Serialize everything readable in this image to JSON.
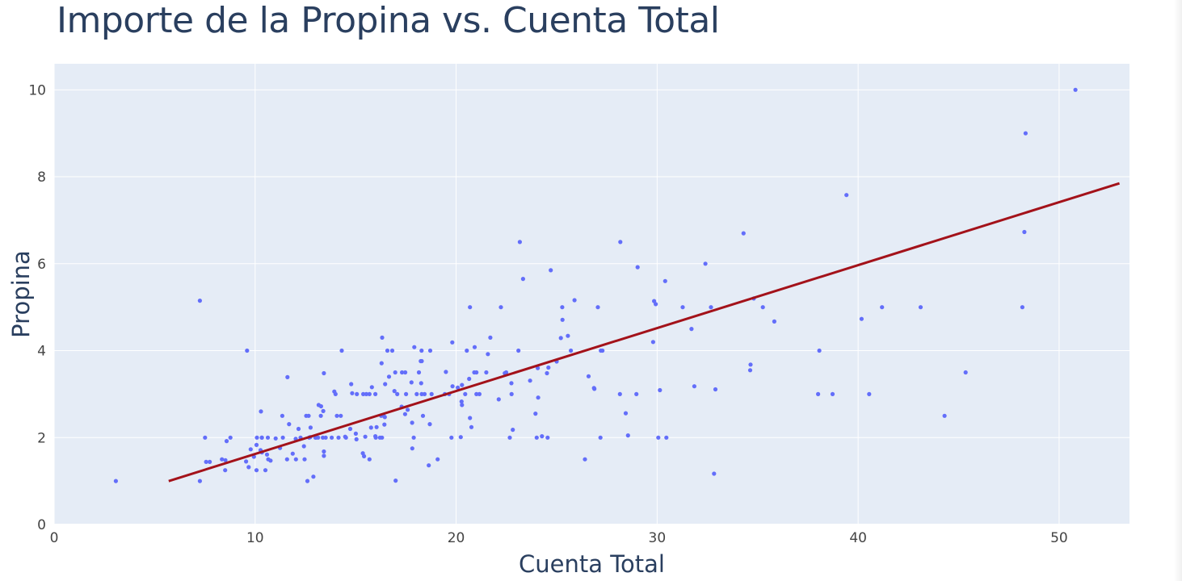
{
  "chart_data": {
    "type": "scatter",
    "title": "Importe de la Propina vs. Cuenta Total",
    "xlabel": "Cuenta Total",
    "ylabel": "Propina",
    "xlim": [
      0,
      53.5
    ],
    "ylim": [
      0,
      10.6
    ],
    "xticks": [
      0,
      10,
      20,
      30,
      40,
      50
    ],
    "yticks": [
      0,
      2,
      4,
      6,
      8,
      10
    ],
    "grid": true,
    "legend": "none",
    "colors": {
      "background": "#e5ecf6",
      "grid": "#ffffff",
      "points": "#636efa",
      "trendline": "#a3121a",
      "text": "#2a3f5f"
    },
    "series": [
      {
        "type": "scatter",
        "points": [
          [
            3.07,
            1.0
          ],
          [
            7.25,
            5.15
          ],
          [
            7.25,
            1.0
          ],
          [
            7.51,
            2.0
          ],
          [
            7.56,
            1.44
          ],
          [
            7.74,
            1.44
          ],
          [
            8.35,
            1.5
          ],
          [
            8.51,
            1.25
          ],
          [
            8.52,
            1.48
          ],
          [
            8.58,
            1.92
          ],
          [
            8.77,
            2.0
          ],
          [
            9.55,
            1.45
          ],
          [
            9.6,
            4.0
          ],
          [
            9.68,
            1.32
          ],
          [
            9.78,
            1.73
          ],
          [
            9.94,
            1.56
          ],
          [
            10.07,
            1.83
          ],
          [
            10.07,
            1.25
          ],
          [
            10.09,
            2.0
          ],
          [
            10.27,
            1.71
          ],
          [
            10.29,
            2.6
          ],
          [
            10.33,
            2.0
          ],
          [
            10.34,
            1.66
          ],
          [
            10.34,
            2.0
          ],
          [
            10.51,
            1.25
          ],
          [
            10.59,
            1.61
          ],
          [
            10.63,
            2.0
          ],
          [
            10.65,
            1.5
          ],
          [
            10.77,
            1.47
          ],
          [
            11.02,
            1.98
          ],
          [
            11.24,
            1.76
          ],
          [
            11.35,
            2.5
          ],
          [
            11.38,
            2.0
          ],
          [
            11.59,
            1.5
          ],
          [
            11.61,
            3.39
          ],
          [
            11.69,
            2.31
          ],
          [
            11.87,
            1.63
          ],
          [
            12.02,
            1.97
          ],
          [
            12.03,
            1.5
          ],
          [
            12.16,
            2.2
          ],
          [
            12.26,
            2.0
          ],
          [
            12.43,
            1.8
          ],
          [
            12.46,
            1.5
          ],
          [
            12.54,
            2.5
          ],
          [
            12.6,
            1.0
          ],
          [
            12.66,
            2.5
          ],
          [
            12.69,
            2.0
          ],
          [
            12.74,
            2.01
          ],
          [
            12.76,
            2.23
          ],
          [
            12.9,
            1.1
          ],
          [
            13.0,
            2.0
          ],
          [
            13.03,
            2.0
          ],
          [
            13.13,
            2.0
          ],
          [
            13.16,
            2.75
          ],
          [
            13.27,
            2.5
          ],
          [
            13.28,
            2.72
          ],
          [
            13.37,
            2.0
          ],
          [
            13.39,
            2.61
          ],
          [
            13.42,
            3.48
          ],
          [
            13.42,
            1.58
          ],
          [
            13.42,
            1.68
          ],
          [
            13.51,
            2.0
          ],
          [
            13.81,
            2.0
          ],
          [
            13.94,
            3.06
          ],
          [
            14.0,
            3.0
          ],
          [
            14.07,
            2.5
          ],
          [
            14.15,
            2.0
          ],
          [
            14.26,
            2.5
          ],
          [
            14.31,
            4.0
          ],
          [
            14.48,
            2.02
          ],
          [
            14.52,
            2.0
          ],
          [
            14.73,
            2.2
          ],
          [
            14.78,
            3.23
          ],
          [
            14.83,
            3.02
          ],
          [
            15.01,
            2.09
          ],
          [
            15.04,
            1.96
          ],
          [
            15.06,
            3.0
          ],
          [
            15.36,
            1.64
          ],
          [
            15.38,
            3.0
          ],
          [
            15.42,
            1.57
          ],
          [
            15.48,
            2.02
          ],
          [
            15.53,
            3.0
          ],
          [
            15.69,
            1.5
          ],
          [
            15.69,
            3.0
          ],
          [
            15.77,
            2.23
          ],
          [
            15.81,
            3.16
          ],
          [
            15.98,
            2.03
          ],
          [
            15.98,
            3.0
          ],
          [
            16.0,
            2.0
          ],
          [
            16.04,
            2.24
          ],
          [
            16.21,
            2.0
          ],
          [
            16.27,
            2.5
          ],
          [
            16.29,
            3.71
          ],
          [
            16.31,
            2.0
          ],
          [
            16.32,
            4.3
          ],
          [
            16.4,
            2.5
          ],
          [
            16.43,
            2.3
          ],
          [
            16.45,
            2.47
          ],
          [
            16.47,
            3.23
          ],
          [
            16.58,
            4.0
          ],
          [
            16.66,
            3.4
          ],
          [
            16.82,
            4.0
          ],
          [
            16.93,
            3.07
          ],
          [
            16.97,
            3.5
          ],
          [
            16.99,
            1.01
          ],
          [
            17.07,
            3.0
          ],
          [
            17.29,
            2.71
          ],
          [
            17.31,
            3.5
          ],
          [
            17.46,
            2.54
          ],
          [
            17.47,
            3.5
          ],
          [
            17.51,
            3.0
          ],
          [
            17.59,
            2.64
          ],
          [
            17.78,
            3.27
          ],
          [
            17.81,
            2.34
          ],
          [
            17.82,
            1.75
          ],
          [
            17.89,
            2.0
          ],
          [
            17.92,
            4.08
          ],
          [
            18.04,
            3.0
          ],
          [
            18.15,
            3.5
          ],
          [
            18.24,
            3.76
          ],
          [
            18.26,
            3.25
          ],
          [
            18.28,
            4.0
          ],
          [
            18.29,
            3.76
          ],
          [
            18.29,
            3.0
          ],
          [
            18.35,
            2.5
          ],
          [
            18.43,
            3.0
          ],
          [
            18.64,
            1.36
          ],
          [
            18.69,
            2.31
          ],
          [
            18.71,
            4.0
          ],
          [
            18.78,
            3.0
          ],
          [
            19.08,
            1.5
          ],
          [
            19.44,
            3.0
          ],
          [
            19.49,
            3.51
          ],
          [
            19.65,
            3.0
          ],
          [
            19.77,
            2.0
          ],
          [
            19.81,
            4.19
          ],
          [
            19.82,
            3.18
          ],
          [
            20.08,
            3.15
          ],
          [
            20.23,
            2.01
          ],
          [
            20.27,
            2.83
          ],
          [
            20.29,
            2.75
          ],
          [
            20.29,
            3.21
          ],
          [
            20.45,
            3.0
          ],
          [
            20.53,
            4.0
          ],
          [
            20.65,
            3.35
          ],
          [
            20.69,
            2.45
          ],
          [
            20.69,
            5.0
          ],
          [
            20.76,
            2.24
          ],
          [
            20.9,
            3.5
          ],
          [
            20.92,
            4.08
          ],
          [
            21.01,
            3.5
          ],
          [
            21.01,
            3.0
          ],
          [
            21.16,
            3.0
          ],
          [
            21.5,
            3.5
          ],
          [
            21.58,
            3.92
          ],
          [
            21.7,
            4.3
          ],
          [
            22.12,
            2.88
          ],
          [
            22.23,
            5.0
          ],
          [
            22.42,
            3.48
          ],
          [
            22.49,
            3.5
          ],
          [
            22.67,
            2.0
          ],
          [
            22.75,
            3.25
          ],
          [
            22.76,
            3.0
          ],
          [
            22.82,
            2.18
          ],
          [
            23.1,
            4.0
          ],
          [
            23.17,
            6.5
          ],
          [
            23.33,
            5.65
          ],
          [
            23.68,
            3.31
          ],
          [
            23.95,
            2.55
          ],
          [
            24.01,
            2.0
          ],
          [
            24.06,
            3.6
          ],
          [
            24.08,
            2.92
          ],
          [
            24.27,
            2.03
          ],
          [
            24.52,
            3.48
          ],
          [
            24.55,
            2.0
          ],
          [
            24.59,
            3.61
          ],
          [
            24.71,
            5.85
          ],
          [
            25.0,
            3.75
          ],
          [
            25.21,
            4.29
          ],
          [
            25.28,
            5.0
          ],
          [
            25.29,
            4.71
          ],
          [
            25.56,
            4.34
          ],
          [
            25.71,
            4.0
          ],
          [
            25.89,
            5.16
          ],
          [
            26.41,
            1.5
          ],
          [
            26.59,
            3.41
          ],
          [
            26.86,
            3.14
          ],
          [
            26.88,
            3.12
          ],
          [
            27.05,
            5.0
          ],
          [
            27.18,
            2.0
          ],
          [
            27.2,
            4.0
          ],
          [
            27.28,
            4.0
          ],
          [
            28.15,
            3.0
          ],
          [
            28.17,
            6.5
          ],
          [
            28.44,
            2.56
          ],
          [
            28.55,
            2.05
          ],
          [
            28.97,
            3.0
          ],
          [
            29.03,
            5.92
          ],
          [
            29.8,
            4.2
          ],
          [
            29.85,
            5.14
          ],
          [
            29.93,
            5.07
          ],
          [
            30.06,
            2.0
          ],
          [
            30.14,
            3.09
          ],
          [
            30.4,
            5.6
          ],
          [
            30.46,
            2.0
          ],
          [
            31.27,
            5.0
          ],
          [
            31.71,
            4.5
          ],
          [
            31.85,
            3.18
          ],
          [
            32.4,
            6.0
          ],
          [
            32.68,
            5.0
          ],
          [
            32.83,
            1.17
          ],
          [
            32.9,
            3.11
          ],
          [
            34.3,
            6.7
          ],
          [
            34.63,
            3.55
          ],
          [
            34.65,
            3.68
          ],
          [
            34.81,
            5.2
          ],
          [
            35.26,
            5.0
          ],
          [
            35.83,
            4.67
          ],
          [
            38.01,
            3.0
          ],
          [
            38.07,
            4.0
          ],
          [
            38.73,
            3.0
          ],
          [
            39.42,
            7.58
          ],
          [
            40.17,
            4.73
          ],
          [
            40.55,
            3.0
          ],
          [
            41.19,
            5.0
          ],
          [
            43.11,
            5.0
          ],
          [
            44.3,
            2.5
          ],
          [
            45.35,
            3.5
          ],
          [
            48.17,
            5.0
          ],
          [
            48.27,
            6.73
          ],
          [
            48.33,
            9.0
          ],
          [
            50.81,
            10.0
          ]
        ]
      },
      {
        "type": "line",
        "x": [
          5.7,
          53.0
        ],
        "y": [
          1.0,
          7.85
        ]
      }
    ]
  }
}
